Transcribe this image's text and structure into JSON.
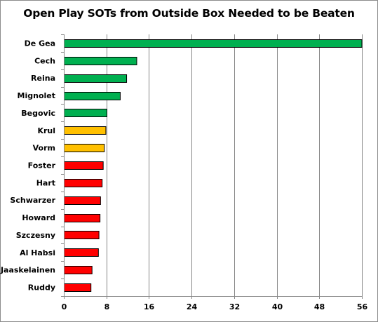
{
  "chart_data": {
    "type": "bar",
    "orientation": "horizontal",
    "title": "Open Play SOTs from Outside Box Needed to be Beaten",
    "xlabel": "",
    "ylabel": "",
    "xlim": [
      0,
      56
    ],
    "xticks": [
      "0",
      "8",
      "16",
      "24",
      "32",
      "40",
      "48",
      "56"
    ],
    "grid": true,
    "legend": "none",
    "categories": [
      "De Gea",
      "Cech",
      "Reina",
      "Mignolet",
      "Begovic",
      "Krul",
      "Vorm",
      "Foster",
      "Hart",
      "Schwarzer",
      "Howard",
      "Szczesny",
      "Al Habsi",
      "Jaaskelainen",
      "Ruddy"
    ],
    "values": [
      56,
      13.7,
      11.8,
      10.6,
      8.1,
      7.9,
      7.6,
      7.4,
      7.2,
      6.9,
      6.8,
      6.6,
      6.5,
      5.3,
      5.1
    ],
    "bar_colors": [
      "#00b050",
      "#00b050",
      "#00b050",
      "#00b050",
      "#00b050",
      "#ffc000",
      "#ffc000",
      "#ff0000",
      "#ff0000",
      "#ff0000",
      "#ff0000",
      "#ff0000",
      "#ff0000",
      "#ff0000",
      "#ff0000"
    ],
    "gridline_color": "#868686",
    "bar_outline_color": "#000000"
  }
}
